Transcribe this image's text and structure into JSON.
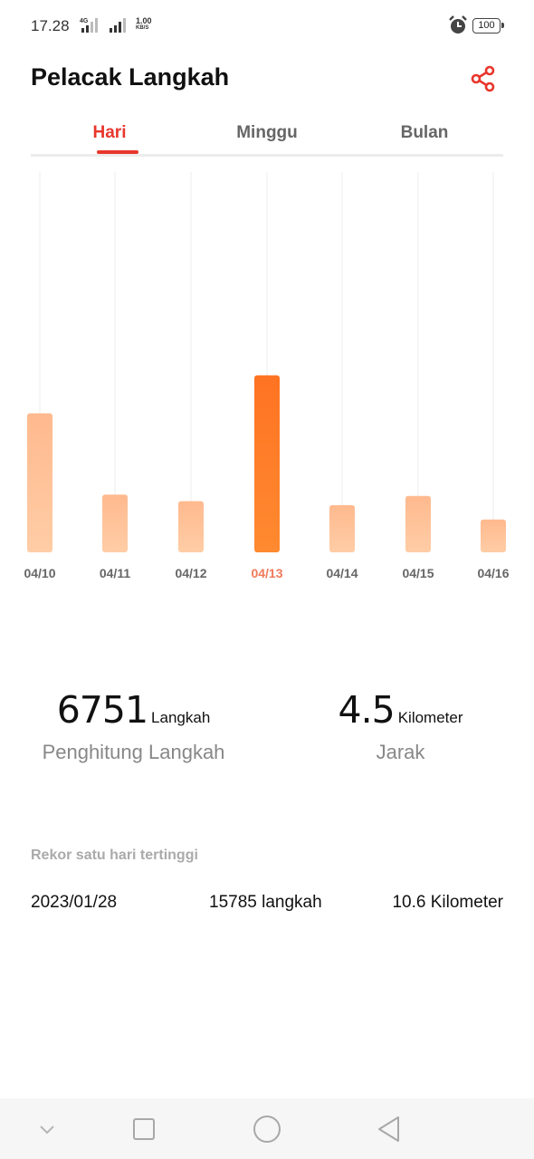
{
  "status_bar": {
    "time": "17.28",
    "network": "4G",
    "speed_value": "1.00",
    "speed_unit": "KB/S",
    "battery": "100",
    "alarm_icon": "alarm-clock-icon"
  },
  "header": {
    "title": "Pelacak Langkah",
    "share_icon": "share-icon"
  },
  "tabs": [
    {
      "label": "Hari",
      "active": true
    },
    {
      "label": "Minggu",
      "active": false
    },
    {
      "label": "Bulan",
      "active": false
    }
  ],
  "colors": {
    "accent": "#e8362c",
    "bar_selected": "#ff7a22",
    "bar_normal": "#ffc39a",
    "date_selected": "#f07a5a",
    "date_normal": "#666666"
  },
  "chart_data": {
    "type": "bar",
    "categories": [
      "04/10",
      "04/11",
      "04/12",
      "04/13",
      "04/14",
      "04/15",
      "04/16"
    ],
    "values": [
      5300,
      2200,
      1950,
      6751,
      1800,
      2150,
      1250
    ],
    "selected_index": 3,
    "title": "",
    "xlabel": "",
    "ylabel": "",
    "ylim": [
      0,
      14500
    ],
    "grid": true,
    "legend": "none"
  },
  "stats": {
    "steps": {
      "value": "6751",
      "unit": "Langkah",
      "label": "Penghitung Langkah"
    },
    "distance": {
      "value": "4.5",
      "unit": "Kilometer",
      "label": "Jarak"
    }
  },
  "record": {
    "title": "Rekor satu hari tertinggi",
    "date": "2023/01/28",
    "steps": "15785 langkah",
    "distance": "10.6 Kilometer"
  },
  "nav": {
    "down_icon": "chevron-down-icon",
    "recents_icon": "square-recents-icon",
    "home_icon": "circle-home-icon",
    "back_icon": "triangle-back-icon"
  }
}
